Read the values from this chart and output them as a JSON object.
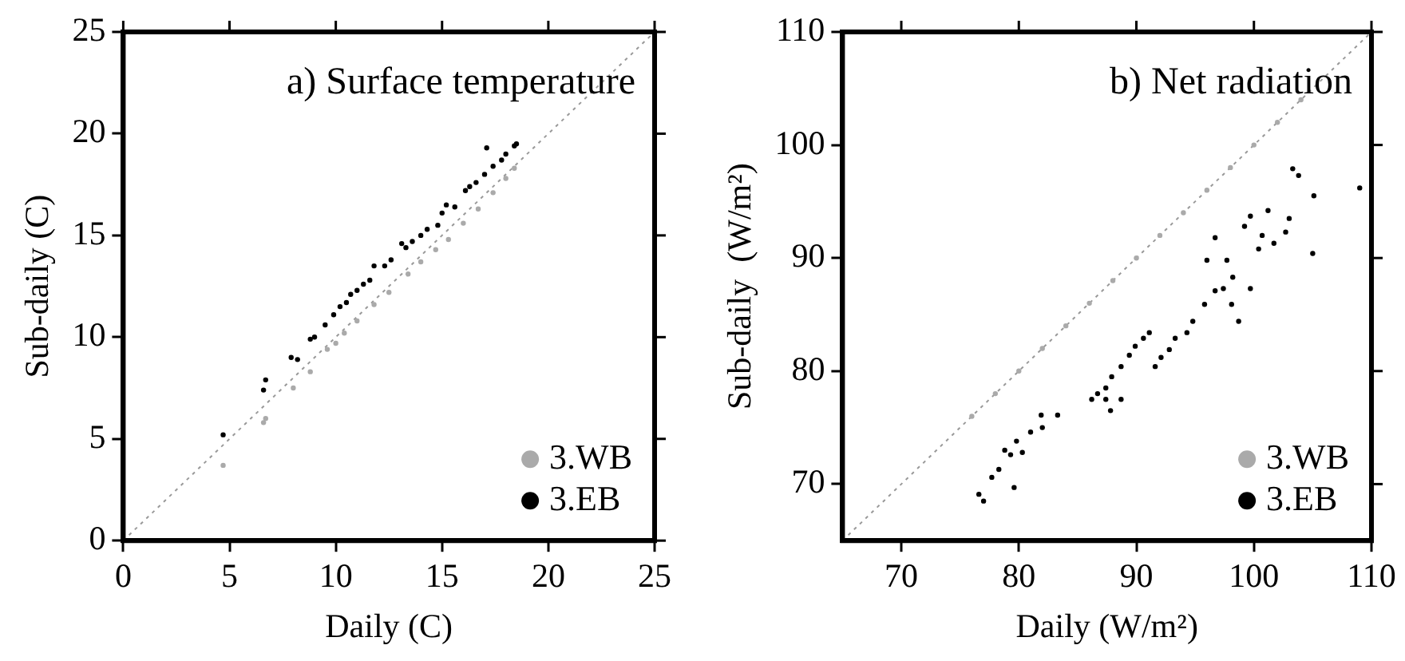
{
  "chart_data": [
    {
      "type": "scatter",
      "title": "a) Surface temperature",
      "xlabel": "Daily (C)",
      "ylabel": "Sub-daily (C)",
      "xlim": [
        0,
        25
      ],
      "ylim": [
        0,
        25
      ],
      "xticks": [
        0,
        5,
        10,
        15,
        20,
        25
      ],
      "yticks": [
        0,
        5,
        10,
        15,
        20,
        25
      ],
      "legend": "bottom right",
      "grid": false,
      "series": [
        {
          "name": "3.WB",
          "color": "#aaaaaa",
          "marker": "circle",
          "x": [
            4.7,
            6.6,
            6.7,
            8.0,
            8.8,
            9.6,
            10.0,
            10.4,
            11.0,
            11.8,
            12.5,
            13.4,
            14.0,
            14.7,
            15.3,
            16.0,
            16.7,
            17.4,
            18.0,
            18.4
          ],
          "values": [
            3.7,
            5.8,
            6.0,
            7.5,
            8.3,
            9.4,
            9.7,
            10.2,
            10.8,
            11.6,
            12.2,
            13.1,
            13.7,
            14.3,
            14.8,
            15.6,
            16.3,
            17.1,
            17.8,
            18.3
          ]
        },
        {
          "name": "3.EB",
          "color": "#000000",
          "marker": "circle",
          "x": [
            4.7,
            6.6,
            6.7,
            7.9,
            8.2,
            8.8,
            9.0,
            9.5,
            9.9,
            10.2,
            10.5,
            10.7,
            11.0,
            11.3,
            11.6,
            11.8,
            12.3,
            12.6,
            13.1,
            13.3,
            13.6,
            14.0,
            14.3,
            14.8,
            15.0,
            15.2,
            15.6,
            16.1,
            16.3,
            16.6,
            17.0,
            17.1,
            17.4,
            17.8,
            18.0,
            18.4,
            18.5
          ],
          "values": [
            5.2,
            7.4,
            7.9,
            9.0,
            8.9,
            9.9,
            10.0,
            10.6,
            11.1,
            11.5,
            11.7,
            12.1,
            12.3,
            12.6,
            12.8,
            13.5,
            13.5,
            13.8,
            14.6,
            14.4,
            14.7,
            15.0,
            15.3,
            15.5,
            16.1,
            16.5,
            16.4,
            17.2,
            17.4,
            17.6,
            18.0,
            19.3,
            18.4,
            18.7,
            19.0,
            19.4,
            19.5
          ]
        },
        {
          "type": "line",
          "color": "#999999",
          "line_style": "dotted",
          "x": [
            0,
            25
          ],
          "values": [
            0,
            25
          ]
        }
      ]
    },
    {
      "type": "scatter",
      "title": "b) Net radiation",
      "xlabel": "Daily (W/m²)",
      "ylabel": "Sub-daily  (W/m²)",
      "xlim": [
        65,
        110
      ],
      "ylim": [
        65,
        110
      ],
      "xticks": [
        70,
        80,
        90,
        100,
        110
      ],
      "yticks": [
        70,
        80,
        90,
        100,
        110
      ],
      "legend": "bottom right",
      "grid": false,
      "series": [
        {
          "name": "3.WB",
          "color": "#aaaaaa",
          "marker": "circle",
          "x": [
            76,
            78,
            80,
            82,
            84,
            86,
            88,
            90,
            92,
            94,
            96,
            98,
            100,
            102,
            104
          ],
          "values": [
            76,
            78,
            80,
            82,
            84,
            86,
            88,
            90,
            92,
            94,
            96,
            98,
            100,
            102,
            104
          ]
        },
        {
          "name": "3.EB",
          "color": "#000000",
          "marker": "circle",
          "x": [
            76.6,
            77.0,
            77.7,
            78.3,
            78.8,
            79.6,
            79.3,
            80.3,
            79.8,
            81.0,
            82.0,
            81.9,
            83.3,
            86.2,
            86.7,
            87.4,
            87.8,
            87.9,
            88.7,
            89.4,
            89.9,
            90.6,
            91.1,
            91.6,
            92.1,
            92.8,
            93.3,
            94.3,
            94.8,
            95.8,
            96.7,
            96.0,
            96.7,
            97.7,
            98.2,
            98.7,
            99.2,
            99.7,
            99.7,
            100.4,
            100.7,
            101.2,
            101.7,
            102.7,
            103.0,
            103.3,
            103.8,
            105.1,
            105.0,
            109.0,
            98.1,
            97.4,
            87.4,
            88.7
          ],
          "values": [
            69.1,
            68.5,
            70.6,
            71.3,
            73.0,
            69.7,
            72.6,
            72.8,
            73.8,
            74.6,
            75.0,
            76.1,
            76.1,
            77.5,
            78.0,
            78.5,
            76.5,
            79.5,
            80.4,
            81.4,
            82.2,
            82.9,
            83.4,
            80.4,
            81.2,
            81.9,
            82.9,
            83.4,
            84.4,
            85.9,
            87.1,
            89.8,
            91.8,
            89.8,
            88.3,
            84.4,
            92.8,
            93.7,
            87.3,
            90.8,
            92.0,
            94.2,
            91.3,
            92.3,
            93.5,
            97.9,
            97.3,
            95.5,
            90.4,
            96.2,
            85.9,
            87.3,
            77.5,
            77.5
          ]
        },
        {
          "type": "line",
          "color": "#999999",
          "line_style": "dotted",
          "x": [
            65,
            110
          ],
          "values": [
            65,
            110
          ]
        }
      ]
    }
  ]
}
